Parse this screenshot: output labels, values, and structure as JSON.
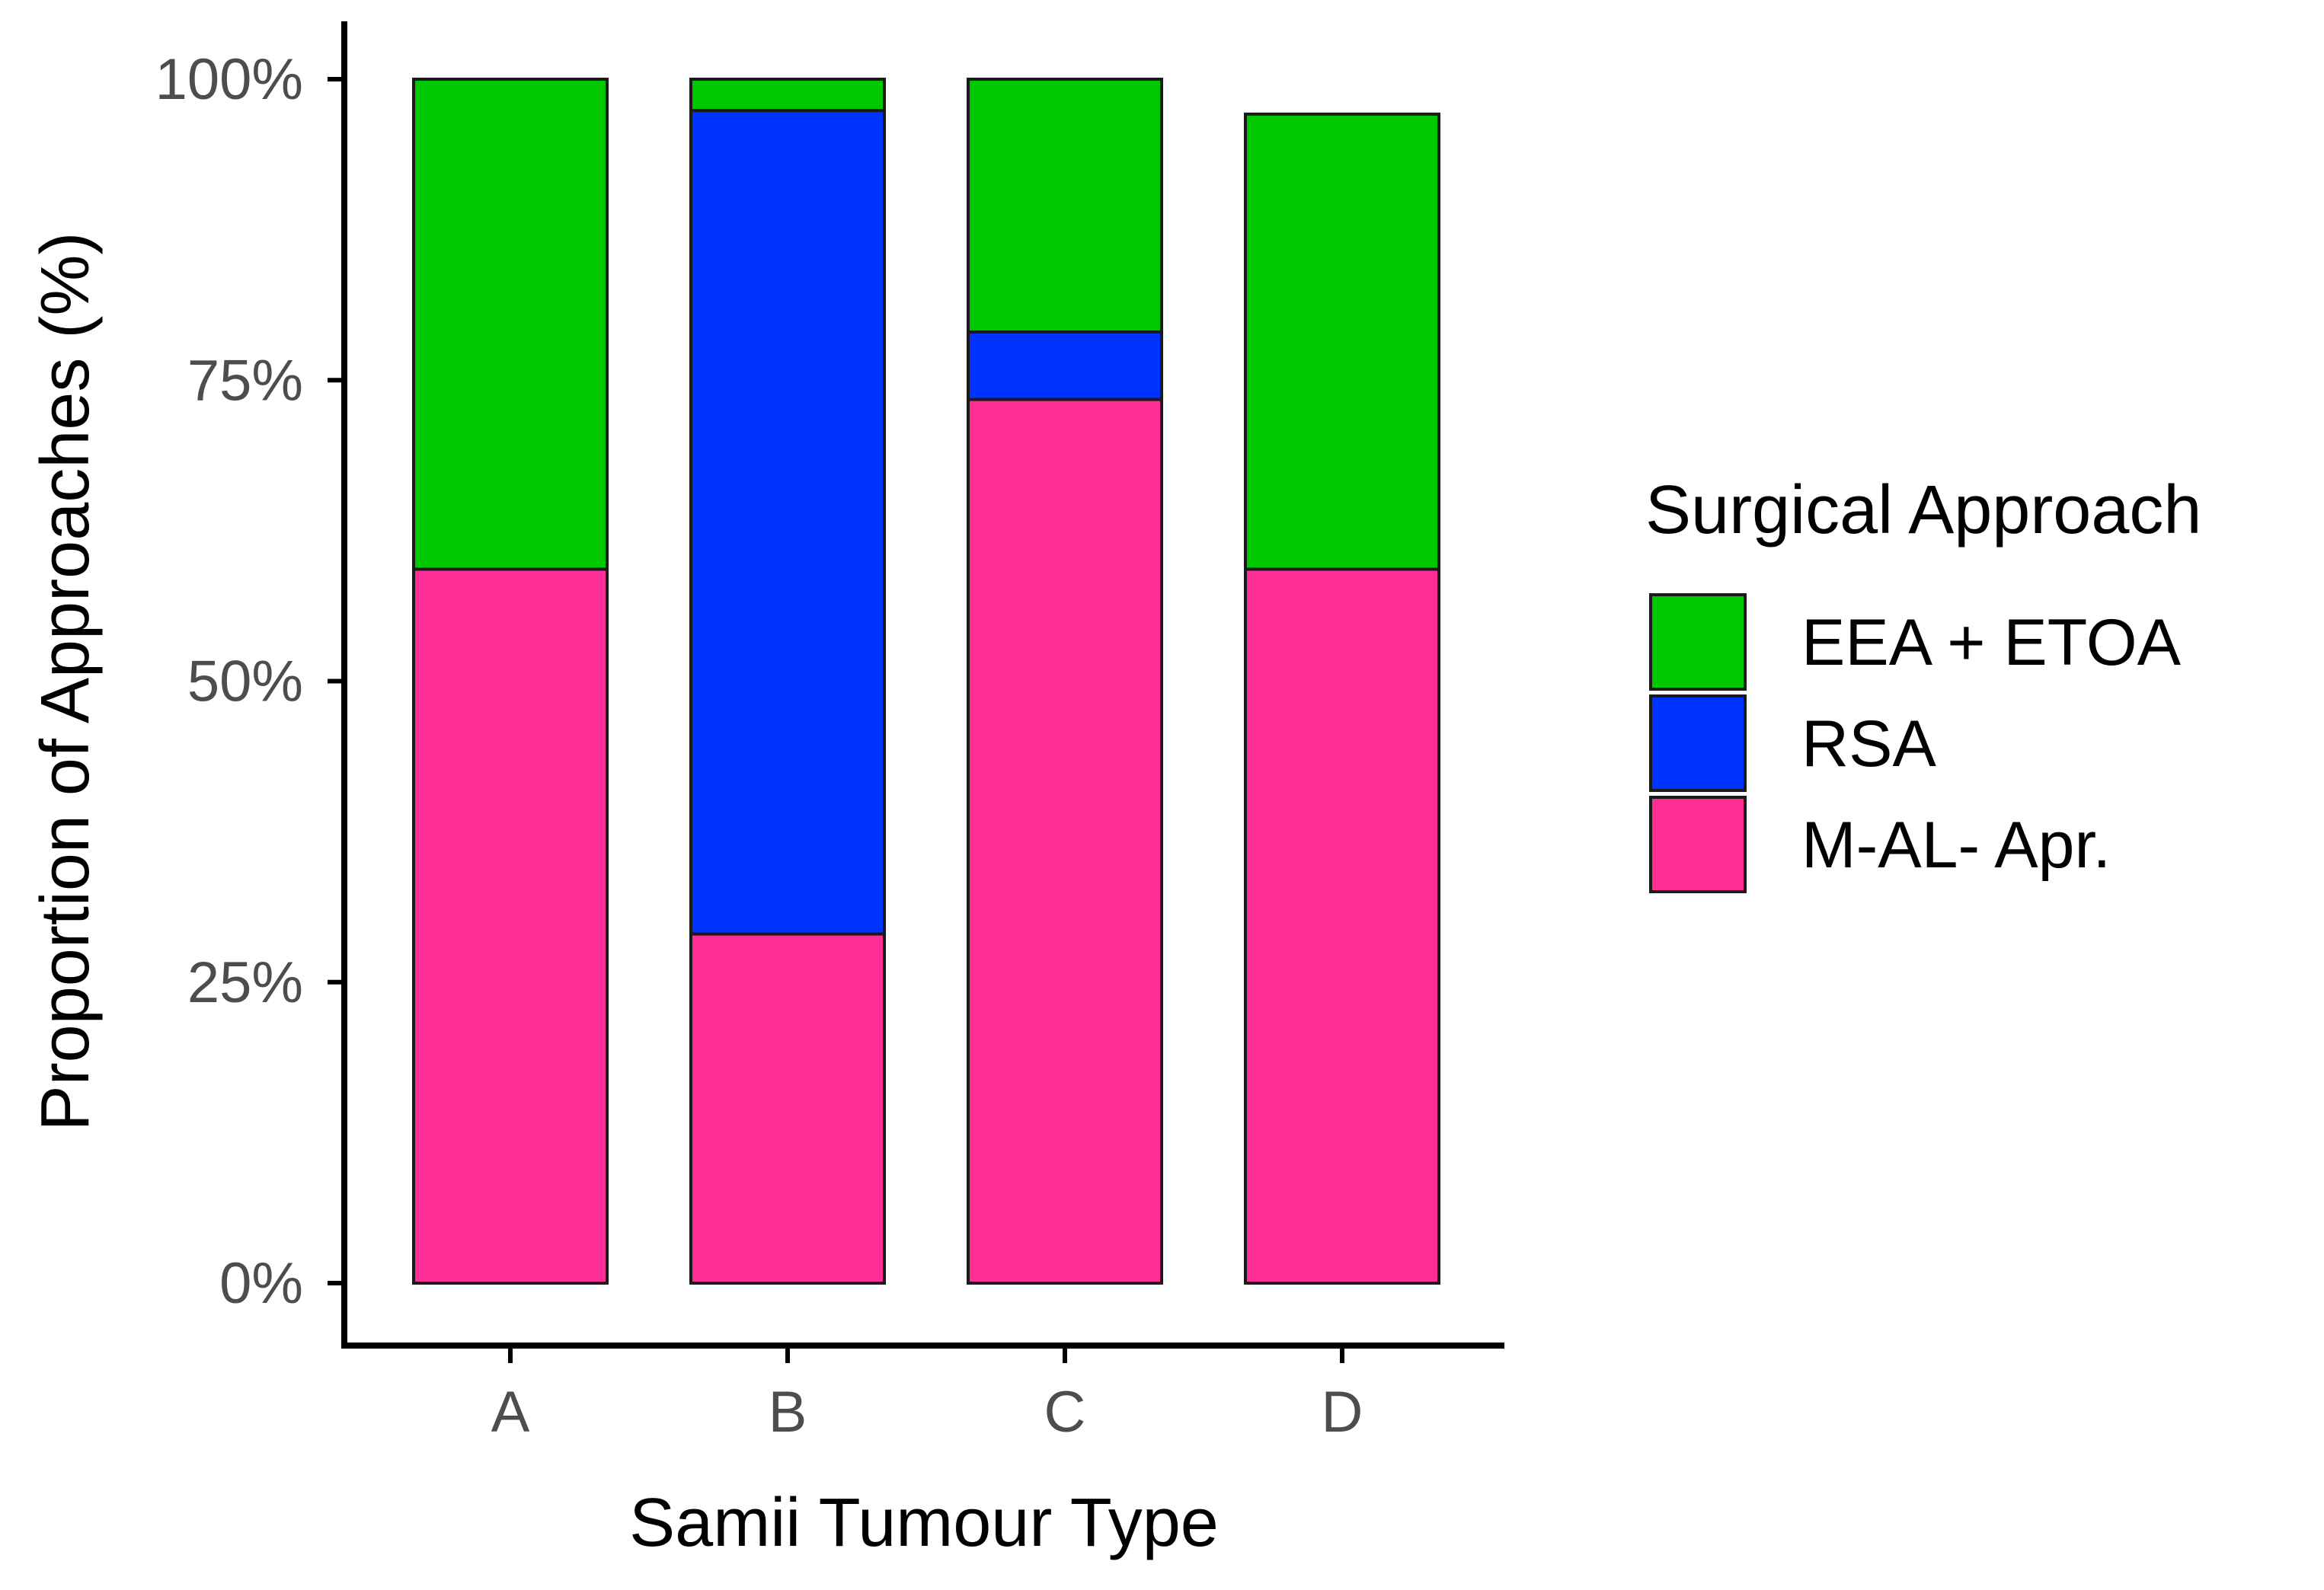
{
  "chart_data": {
    "type": "bar",
    "stacked": true,
    "title": "",
    "xlabel": "Samii Tumour Type",
    "ylabel": "Proportion of Approaches (%)",
    "ylim": [
      0,
      100
    ],
    "yticks": [
      0,
      25,
      50,
      75,
      100
    ],
    "ytick_labels": [
      "0%",
      "25%",
      "50%",
      "75%",
      "100%"
    ],
    "categories": [
      "A",
      "B",
      "C",
      "D"
    ],
    "series": [
      {
        "name": "M-AL- Apr.",
        "color": "#ff2d96",
        "values": [
          59.3,
          29.0,
          73.4,
          59.3
        ]
      },
      {
        "name": "RSA",
        "color": "#0033ff",
        "values": [
          0,
          68.4,
          5.6,
          0
        ]
      },
      {
        "name": "EEA + ETOA",
        "color": "#00c800",
        "values": [
          40.7,
          2.6,
          21.0,
          37.8
        ]
      }
    ],
    "legend": {
      "title": "Surgical Approach",
      "placement": "right",
      "order": [
        "EEA + ETOA",
        "RSA",
        "M-AL- Apr."
      ]
    },
    "grid": false
  }
}
